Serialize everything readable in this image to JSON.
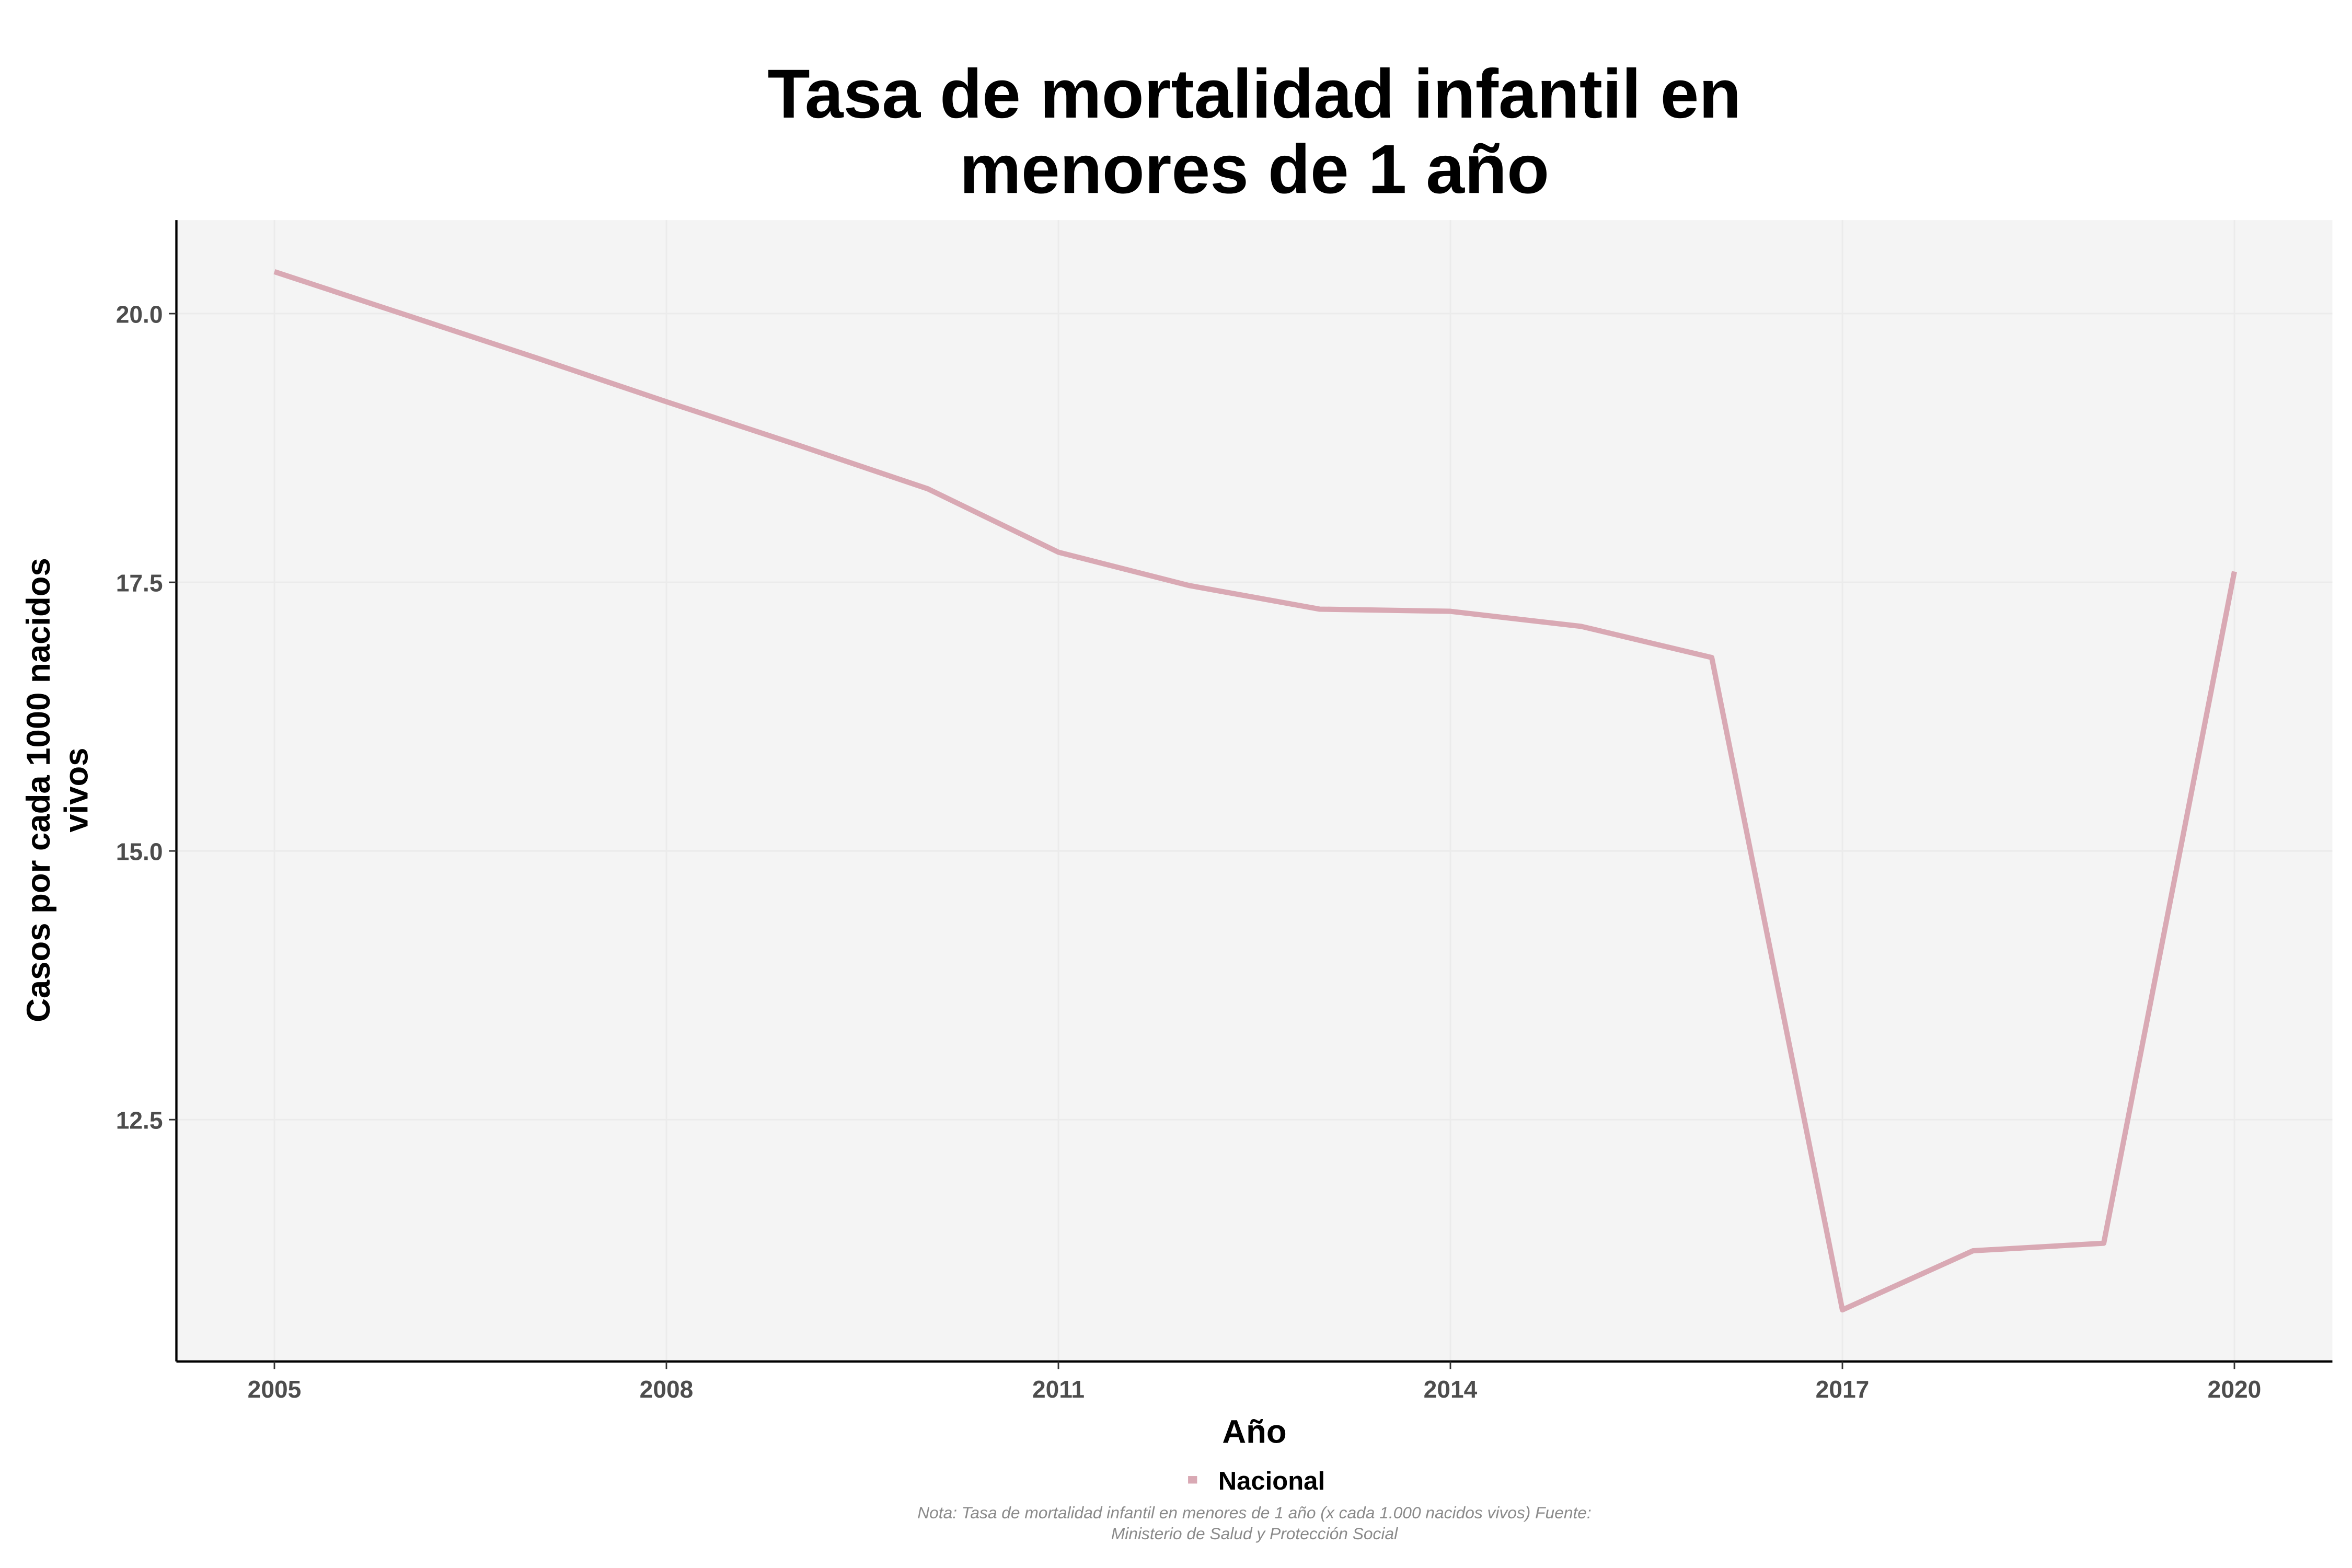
{
  "chart_data": {
    "type": "line",
    "title": [
      "Tasa de mortalidad infantil en",
      "menores de 1 año"
    ],
    "xlabel": "Año",
    "ylabel": [
      "Casos por cada 1000 nacidos",
      "vivos"
    ],
    "xlim": [
      2004.25,
      2020.75
    ],
    "ylim": [
      10.25,
      20.87
    ],
    "x_ticks": [
      "2005",
      "2008",
      "2011",
      "2014",
      "2017",
      "2020"
    ],
    "y_ticks": [
      "12.5",
      "15.0",
      "17.5",
      "20.0"
    ],
    "grid": true,
    "legend_position": "bottom",
    "series": [
      {
        "name": "Nacional",
        "color": "#d9a9b4",
        "x": [
          2005,
          2006,
          2007,
          2008,
          2009,
          2010,
          2011,
          2012,
          2013,
          2014,
          2015,
          2016,
          2017,
          2018,
          2019,
          2020
        ],
        "y": [
          20.39,
          19.99,
          19.59,
          19.18,
          18.78,
          18.37,
          17.78,
          17.47,
          17.25,
          17.23,
          17.09,
          16.8,
          10.73,
          11.28,
          11.35,
          17.6
        ]
      }
    ],
    "note": [
      "Nota: Tasa de mortalidad infantil en menores de 1 año (x cada 1.000 nacidos vivos) Fuente:",
      "Ministerio de Salud y Protección Social"
    ]
  }
}
